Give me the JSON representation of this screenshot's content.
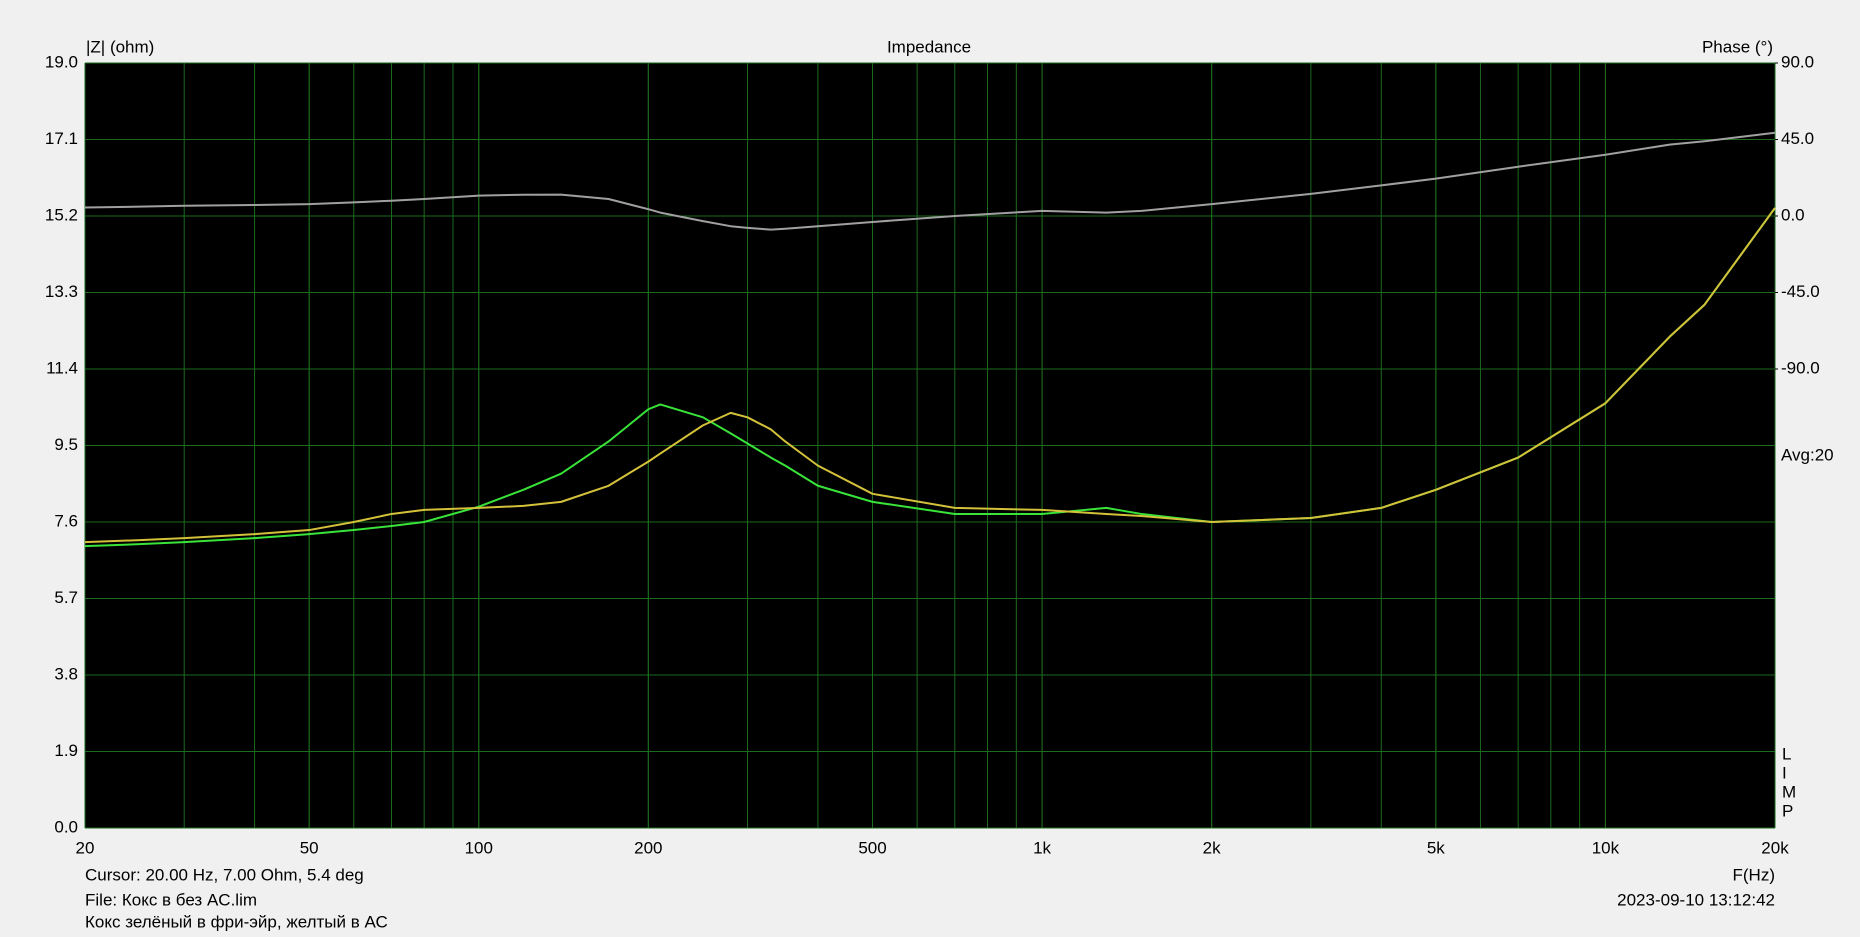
{
  "chart_data": {
    "type": "line",
    "title": "Impedance",
    "y_label": "|Z| (ohm)",
    "y2_label": "Phase (°)",
    "x_label": "F(Hz)",
    "avg_label": "Avg:20",
    "side_letters": [
      "L",
      "I",
      "M",
      "P"
    ],
    "cursor_text": "Cursor: 20.00 Hz, 7.00 Ohm, 5.4 deg",
    "file_text": "File: Кокс в без AC.lim",
    "date_text": "2023-09-10 13:12:42",
    "note_text": "Кокс зелёный в фри-эйр, желтый в АС",
    "x_log": true,
    "grid": true,
    "minor_grid": true,
    "xlim": [
      20,
      20000
    ],
    "xticks": [
      20,
      50,
      100,
      200,
      500,
      {
        "value": 1000,
        "label": "1k"
      },
      {
        "value": 2000,
        "label": "2k"
      },
      {
        "value": 5000,
        "label": "5k"
      },
      {
        "value": 10000,
        "label": "10k"
      },
      {
        "value": 20000,
        "label": "20k"
      }
    ],
    "ylim": [
      0,
      19
    ],
    "yticks": [
      {
        "value": 19,
        "label": "19.0"
      },
      17.1,
      15.2,
      13.3,
      11.4,
      9.5,
      7.6,
      5.7,
      3.8,
      1.9,
      {
        "value": 0,
        "label": "0.0"
      }
    ],
    "y2lim": [
      -360,
      90
    ],
    "y2ticks": [
      {
        "value": 90,
        "label": "90.0"
      },
      {
        "value": 45,
        "label": "45.0"
      },
      {
        "value": 0,
        "label": "0.0"
      },
      {
        "value": -45,
        "label": "-45.0"
      },
      {
        "value": -90,
        "label": "-90.0"
      }
    ],
    "x": [
      20,
      25,
      30,
      40,
      50,
      60,
      70,
      80,
      100,
      120,
      140,
      170,
      200,
      210,
      250,
      280,
      300,
      330,
      350,
      400,
      500,
      700,
      1000,
      1300,
      1500,
      2000,
      3000,
      4000,
      5000,
      7000,
      10000,
      13000,
      15000,
      20000
    ],
    "series": [
      {
        "name": "Кокс зелёный",
        "color": "#39e339",
        "values": [
          7.0,
          7.05,
          7.1,
          7.2,
          7.3,
          7.4,
          7.5,
          7.6,
          7.98,
          8.4,
          8.8,
          9.6,
          10.4,
          10.52,
          10.2,
          9.8,
          9.55,
          9.2,
          9.0,
          8.5,
          8.1,
          7.8,
          7.8,
          7.95,
          7.8,
          7.6,
          7.7,
          7.95,
          8.4,
          9.2,
          10.55,
          12.2,
          13.0,
          15.4
        ]
      },
      {
        "name": "желтый в АС",
        "color": "#d4c13a",
        "values": [
          7.1,
          7.15,
          7.2,
          7.3,
          7.4,
          7.6,
          7.8,
          7.9,
          7.95,
          8.0,
          8.1,
          8.5,
          9.1,
          9.3,
          10.0,
          10.31,
          10.2,
          9.9,
          9.6,
          9.0,
          8.3,
          7.95,
          7.9,
          7.8,
          7.75,
          7.6,
          7.7,
          7.95,
          8.4,
          9.2,
          10.55,
          12.2,
          13.0,
          15.4
        ]
      },
      {
        "name": "Phase",
        "color": "#a0a0a0",
        "axis": "y2",
        "values": [
          5,
          5.5,
          6,
          6.5,
          7,
          8,
          9,
          10,
          12,
          12.5,
          12.6,
          10,
          4,
          2,
          -3,
          -6,
          -7,
          -8,
          -7.5,
          -6,
          -3.5,
          0,
          3,
          2,
          3,
          7,
          13,
          18,
          22,
          29,
          36,
          42,
          44,
          49
        ]
      }
    ]
  }
}
